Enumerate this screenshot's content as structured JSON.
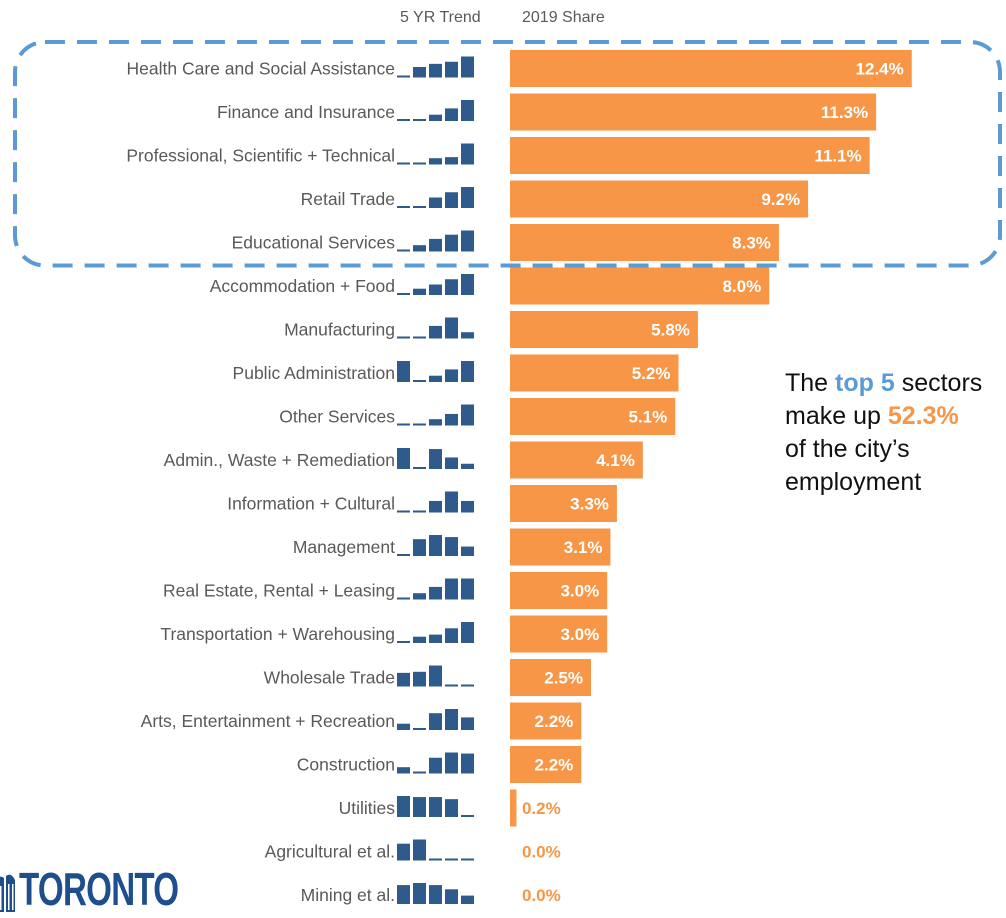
{
  "chart_data": {
    "type": "bar",
    "orientation": "horizontal",
    "headers": {
      "trend": "5 YR Trend",
      "share": "2019 Share"
    },
    "categories": [
      "Health Care and Social Assistance",
      "Finance and Insurance",
      "Professional, Scientific + Technical",
      "Retail Trade",
      "Educational Services",
      "Accommodation + Food",
      "Manufacturing",
      "Public Administration",
      "Other Services",
      "Admin., Waste + Remediation",
      "Information + Cultural",
      "Management",
      "Real Estate, Rental + Leasing",
      "Transportation + Warehousing",
      "Wholesale Trade",
      "Arts, Entertainment +  Recreation",
      "Construction",
      "Utilities",
      "Agricultural et al.",
      "Mining et al."
    ],
    "values": [
      12.4,
      11.3,
      11.1,
      9.2,
      8.3,
      8.0,
      5.8,
      5.2,
      5.1,
      4.1,
      3.3,
      3.1,
      3.0,
      3.0,
      2.5,
      2.2,
      2.2,
      0.2,
      0.0,
      0.0
    ],
    "value_labels": [
      "12.4%",
      "11.3%",
      "11.1%",
      "9.2%",
      "8.3%",
      "8.0%",
      "5.8%",
      "5.2%",
      "5.1%",
      "4.1%",
      "3.3%",
      "3.1%",
      "3.0%",
      "3.0%",
      "2.5%",
      "2.2%",
      "2.2%",
      "0.2%",
      "0.0%",
      "0.0%"
    ],
    "trend_sparkbars": [
      [
        0.05,
        0.5,
        0.65,
        0.75,
        1.0
      ],
      [
        0.05,
        0.05,
        0.3,
        0.6,
        1.0
      ],
      [
        0.05,
        0.05,
        0.3,
        0.35,
        1.0
      ],
      [
        0.05,
        0.05,
        0.5,
        0.75,
        1.0
      ],
      [
        0.05,
        0.3,
        0.6,
        0.8,
        1.0
      ],
      [
        0.05,
        0.3,
        0.5,
        0.75,
        1.0
      ],
      [
        0.05,
        0.05,
        0.6,
        1.0,
        0.3
      ],
      [
        1.0,
        0.05,
        0.3,
        0.6,
        1.0
      ],
      [
        0.05,
        0.05,
        0.3,
        0.55,
        1.0
      ],
      [
        1.0,
        0.05,
        0.95,
        0.55,
        0.25
      ],
      [
        0.05,
        0.05,
        0.55,
        1.0,
        0.55
      ],
      [
        0.05,
        0.8,
        1.0,
        0.9,
        0.45
      ],
      [
        0.05,
        0.3,
        0.6,
        1.0,
        1.0
      ],
      [
        0.05,
        0.3,
        0.4,
        0.7,
        1.0
      ],
      [
        0.65,
        0.7,
        1.0,
        0.05,
        0.05
      ],
      [
        0.3,
        0.05,
        0.8,
        1.0,
        0.6
      ],
      [
        0.3,
        0.05,
        0.75,
        1.0,
        0.95
      ],
      [
        1.0,
        0.95,
        0.95,
        0.85,
        0.05
      ],
      [
        0.8,
        1.0,
        0.05,
        0.05,
        0.05
      ],
      [
        0.9,
        1.0,
        0.9,
        0.7,
        0.4
      ]
    ],
    "highlight_top_n": 5,
    "colors": {
      "bar": "#F79646",
      "trend": "#2E5B8C",
      "highlight_box": "#5B9BD5",
      "label_text": "#595959",
      "value_text": "#FFFFFF",
      "value_text_small": "#F79646",
      "accent_blue": "#5B9BD5",
      "accent_orange": "#F79646",
      "logo": "#1F4E8C"
    }
  },
  "callout": {
    "t1": "The ",
    "t2": "top 5",
    "t3": " sectors",
    "t4": "make up ",
    "t5": "52.3%",
    "t6": "of the city’s",
    "t7": "employment"
  },
  "logo": {
    "text": "TORONTO",
    "icon": "city-hall-icon"
  }
}
